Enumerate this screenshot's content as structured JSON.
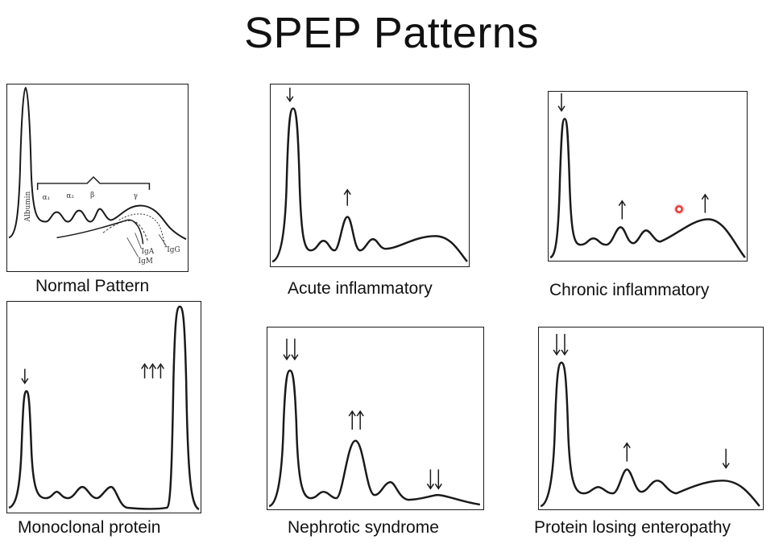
{
  "title": "SPEP Patterns",
  "panels": {
    "normal": {
      "caption": "Normal Pattern",
      "labels": {
        "albumin": "Albumin",
        "alpha1": "α₁",
        "alpha2": "α₂",
        "beta": "β",
        "gamma": "γ",
        "iga": "IgA",
        "igm": "IgM",
        "igg": "IgG"
      }
    },
    "acute": {
      "caption": "Acute inflammatory"
    },
    "chronic": {
      "caption": "Chronic inflammatory"
    },
    "monoclonal": {
      "caption": "Monoclonal protein"
    },
    "nephrotic": {
      "caption": "Nephrotic syndrome"
    },
    "enteropathy": {
      "caption": "Protein losing enteropathy"
    }
  },
  "colors": {
    "line": "#1a1a1a",
    "pointer": "#e53935"
  }
}
